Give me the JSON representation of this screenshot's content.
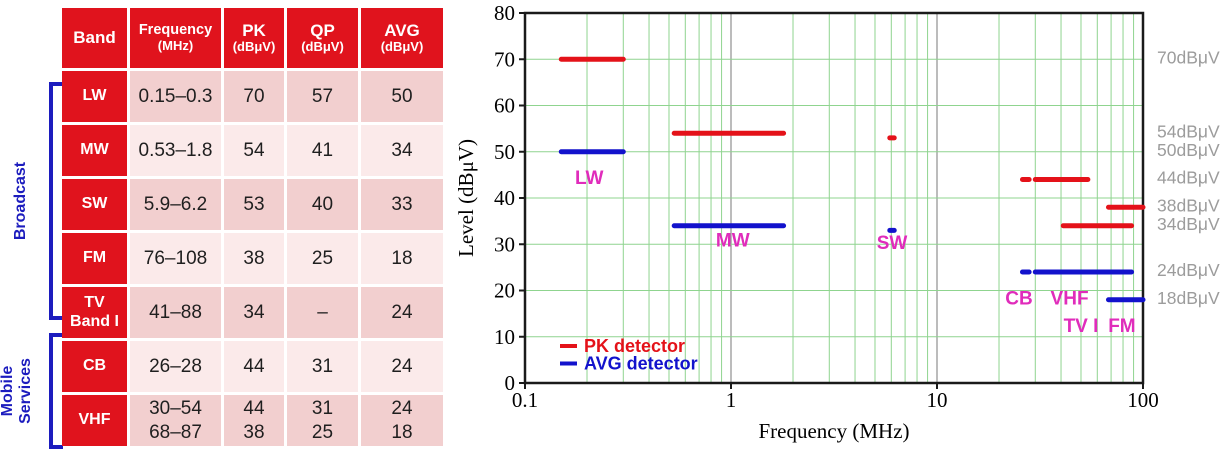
{
  "palette": {
    "table_red": "#e0131d",
    "row_pink_dark": "#f2cfcf",
    "row_pink_light": "#fbeaea",
    "cell_text": "#1f1f1f",
    "group_blue": "#1c1cbe",
    "arrow_red": "#d8101c",
    "band_magenta": "#e02cbb",
    "right_label_gray": "#9c9c9c",
    "grid_green": "#8fd48f",
    "grid_gray": "#8f8f8f",
    "frame_black": "#1a1a1a",
    "pk_red": "#e41219",
    "avg_blue": "#1212cc"
  },
  "table": {
    "headers": [
      {
        "line1": "Band",
        "line2": ""
      },
      {
        "line1": "Frequency",
        "line2": "(MHz)"
      },
      {
        "line1": "PK",
        "line2": "(dBμV)"
      },
      {
        "line1": "QP",
        "line2": "(dBμV)"
      },
      {
        "line1": "AVG",
        "line2": "(dBμV)"
      }
    ],
    "rows": [
      {
        "band": "LW",
        "freq": "0.15–0.3",
        "pk": "70",
        "qp": "57",
        "avg": "50"
      },
      {
        "band": "MW",
        "freq": "0.53–1.8",
        "pk": "54",
        "qp": "41",
        "avg": "34"
      },
      {
        "band": "SW",
        "freq": "5.9–6.2",
        "pk": "53",
        "qp": "40",
        "avg": "33"
      },
      {
        "band": "FM",
        "freq": "76–108",
        "pk": "38",
        "qp": "25",
        "avg": "18"
      },
      {
        "band": "TV\nBand I",
        "freq": "41–88",
        "pk": "34",
        "qp": "–",
        "avg": "24"
      },
      {
        "band": "CB",
        "freq": "26–28",
        "pk": "44",
        "qp": "31",
        "avg": "24"
      },
      {
        "band": "VHF",
        "freq": "30–54\n68–87",
        "pk": "44\n38",
        "qp": "31\n25",
        "avg": "24\n18"
      }
    ],
    "groups": [
      {
        "label": "Broadcast",
        "covers": "LW, MW, SW, FM, TV Band I"
      },
      {
        "label": "Mobile\nServices",
        "covers": "CB, VHF"
      }
    ]
  },
  "chart_data": {
    "type": "line",
    "title": "",
    "xlabel": "Frequency (MHz)",
    "ylabel": "Level (dBμV)",
    "x_scale": "log",
    "xlim": [
      0.1,
      100
    ],
    "ylim": [
      0,
      80
    ],
    "x_ticks": [
      0.1,
      1,
      10,
      100
    ],
    "y_ticks": [
      0,
      10,
      20,
      30,
      40,
      50,
      60,
      70,
      80
    ],
    "grid": true,
    "legend_position": "bottom-left",
    "series": [
      {
        "name": "PK detector",
        "color": "#e41219",
        "segments": [
          {
            "band": "LW",
            "x1": 0.15,
            "x2": 0.3,
            "level": 70
          },
          {
            "band": "MW",
            "x1": 0.53,
            "x2": 1.8,
            "level": 54
          },
          {
            "band": "SW",
            "x1": 5.9,
            "x2": 6.2,
            "level": 53
          },
          {
            "band": "CB",
            "x1": 26,
            "x2": 28,
            "level": 44
          },
          {
            "band": "VHF",
            "x1": 30,
            "x2": 54,
            "level": 44
          },
          {
            "band": "TV I",
            "x1": 41,
            "x2": 88,
            "level": 34
          },
          {
            "band": "VHF/FM",
            "x1": 68,
            "x2": 100,
            "level": 38
          }
        ]
      },
      {
        "name": "AVG detector",
        "color": "#1212cc",
        "segments": [
          {
            "band": "LW",
            "x1": 0.15,
            "x2": 0.3,
            "level": 50
          },
          {
            "band": "MW",
            "x1": 0.53,
            "x2": 1.8,
            "level": 34
          },
          {
            "band": "SW",
            "x1": 5.9,
            "x2": 6.2,
            "level": 33
          },
          {
            "band": "CB",
            "x1": 26,
            "x2": 28,
            "level": 24
          },
          {
            "band": "VHF/TV I",
            "x1": 30,
            "x2": 88,
            "level": 24
          },
          {
            "band": "VHF/FM",
            "x1": 68,
            "x2": 100,
            "level": 18
          }
        ]
      }
    ],
    "band_labels": [
      {
        "text": "LW",
        "x": 0.205,
        "level": 43
      },
      {
        "text": "MW",
        "x": 1.02,
        "level": 29.5
      },
      {
        "text": "SW",
        "x": 6.05,
        "level": 29
      },
      {
        "text": "CB",
        "x": 25,
        "level": 17
      },
      {
        "text": "VHF",
        "x": 44,
        "level": 17
      },
      {
        "text": "TV I",
        "x": 50,
        "level": 11
      },
      {
        "text": "FM",
        "x": 79,
        "level": 11
      }
    ],
    "right_labels": [
      {
        "text": "70dBμV",
        "level": 70
      },
      {
        "text": "54dBμV",
        "level": 54
      },
      {
        "text": "50dBμV",
        "level": 50
      },
      {
        "text": "44dBμV",
        "level": 44
      },
      {
        "text": "38dBμV",
        "level": 38
      },
      {
        "text": "34dBμV",
        "level": 34
      },
      {
        "text": "24dBμV",
        "level": 24
      },
      {
        "text": "18dBμV",
        "level": 18
      }
    ]
  }
}
